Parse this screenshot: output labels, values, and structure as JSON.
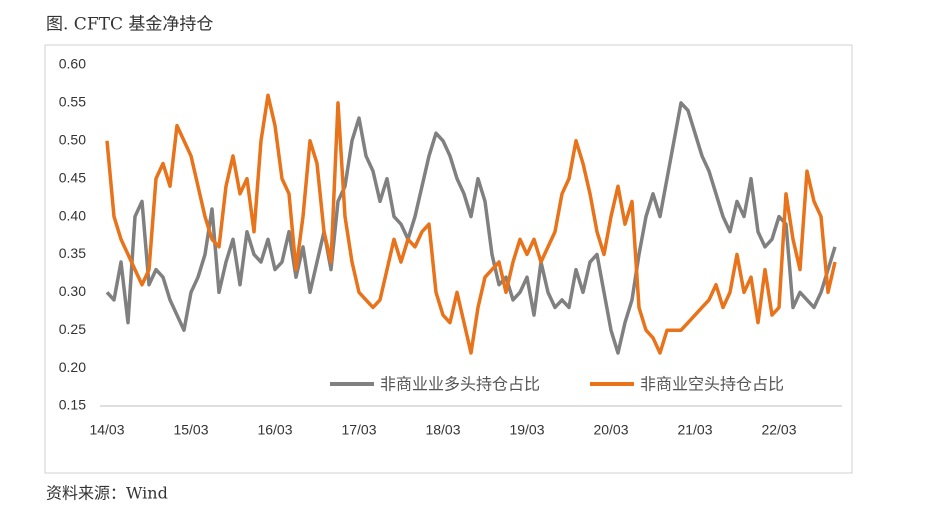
{
  "chart_data": {
    "type": "line",
    "title": "图. CFTC 基金净持仓",
    "source": "资料来源：Wind",
    "categories": [
      "14/03",
      null,
      null,
      null,
      null,
      null,
      null,
      null,
      null,
      null,
      null,
      null,
      "15/03",
      null,
      null,
      null,
      null,
      null,
      null,
      null,
      null,
      null,
      null,
      null,
      "16/03",
      null,
      null,
      null,
      null,
      null,
      null,
      null,
      null,
      null,
      null,
      null,
      "17/03",
      null,
      null,
      null,
      null,
      null,
      null,
      null,
      null,
      null,
      null,
      null,
      "18/03",
      null,
      null,
      null,
      null,
      null,
      null,
      null,
      null,
      null,
      null,
      null,
      "19/03",
      null,
      null,
      null,
      null,
      null,
      null,
      null,
      null,
      null,
      null,
      null,
      "20/03",
      null,
      null,
      null,
      null,
      null,
      null,
      null,
      null,
      null,
      null,
      null,
      "21/03",
      null,
      null,
      null,
      null,
      null,
      null,
      null,
      null,
      null,
      null,
      null,
      "22/03",
      null,
      null,
      null,
      null,
      null,
      null,
      null,
      null
    ],
    "series": [
      {
        "name": "非商业业多头持仓占比",
        "color": "#808080",
        "values": [
          0.3,
          0.29,
          0.34,
          0.26,
          0.4,
          0.42,
          0.31,
          0.33,
          0.32,
          0.29,
          0.27,
          0.25,
          0.3,
          0.32,
          0.35,
          0.41,
          0.3,
          0.34,
          0.37,
          0.31,
          0.38,
          0.35,
          0.34,
          0.37,
          0.33,
          0.34,
          0.38,
          0.32,
          0.36,
          0.3,
          0.34,
          0.38,
          0.33,
          0.42,
          0.44,
          0.5,
          0.53,
          0.48,
          0.46,
          0.42,
          0.45,
          0.4,
          0.39,
          0.37,
          0.4,
          0.44,
          0.48,
          0.51,
          0.5,
          0.48,
          0.45,
          0.43,
          0.4,
          0.45,
          0.42,
          0.35,
          0.31,
          0.32,
          0.29,
          0.3,
          0.32,
          0.27,
          0.34,
          0.3,
          0.28,
          0.29,
          0.28,
          0.33,
          0.3,
          0.34,
          0.35,
          0.3,
          0.25,
          0.22,
          0.26,
          0.29,
          0.35,
          0.4,
          0.43,
          0.4,
          0.45,
          0.5,
          0.55,
          0.54,
          0.51,
          0.48,
          0.46,
          0.43,
          0.4,
          0.38,
          0.42,
          0.4,
          0.45,
          0.38,
          0.36,
          0.37,
          0.4,
          0.39,
          0.28,
          0.3,
          0.29,
          0.28,
          0.3,
          0.33,
          0.36
        ]
      },
      {
        "name": "非商业空头持仓占比",
        "color": "#e8731a",
        "values": [
          0.5,
          0.4,
          0.37,
          0.35,
          0.33,
          0.31,
          0.33,
          0.45,
          0.47,
          0.44,
          0.52,
          0.5,
          0.48,
          0.44,
          0.4,
          0.37,
          0.36,
          0.44,
          0.48,
          0.43,
          0.45,
          0.38,
          0.5,
          0.56,
          0.52,
          0.45,
          0.43,
          0.33,
          0.4,
          0.5,
          0.47,
          0.38,
          0.34,
          0.55,
          0.4,
          0.34,
          0.3,
          0.29,
          0.28,
          0.29,
          0.33,
          0.37,
          0.34,
          0.37,
          0.36,
          0.38,
          0.39,
          0.3,
          0.27,
          0.26,
          0.3,
          0.26,
          0.22,
          0.28,
          0.32,
          0.33,
          0.34,
          0.3,
          0.34,
          0.37,
          0.35,
          0.37,
          0.34,
          0.36,
          0.38,
          0.43,
          0.45,
          0.5,
          0.47,
          0.43,
          0.38,
          0.35,
          0.4,
          0.44,
          0.39,
          0.42,
          0.28,
          0.25,
          0.24,
          0.22,
          0.25,
          0.25,
          0.25,
          0.26,
          0.27,
          0.28,
          0.29,
          0.31,
          0.28,
          0.3,
          0.35,
          0.3,
          0.32,
          0.26,
          0.33,
          0.27,
          0.28,
          0.43,
          0.37,
          0.33,
          0.46,
          0.42,
          0.4,
          0.3,
          0.34
        ]
      }
    ],
    "ylim": [
      0.15,
      0.6
    ],
    "yticks": [
      0.15,
      {
        "value": 0.2,
        "label": "0.20"
      },
      0.25,
      {
        "value": 0.3,
        "label": "0.30"
      },
      0.35,
      {
        "value": 0.4,
        "label": "0.40"
      },
      0.45,
      {
        "value": 0.5,
        "label": "0.50"
      },
      0.55,
      {
        "value": 0.6,
        "label": "0.60"
      }
    ],
    "grid": false
  }
}
